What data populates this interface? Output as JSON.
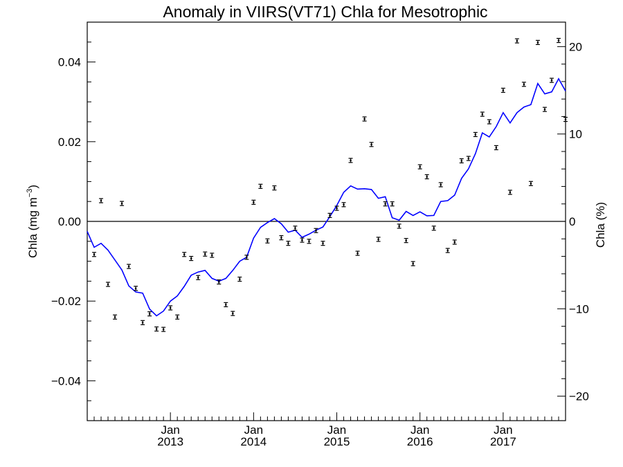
{
  "chart_data": {
    "type": "scatter",
    "title": "Anomaly in VIIRS(VT71) Chla for Mesotrophic",
    "ylabel_left_main": "Chla (mg m",
    "ylabel_left_sup": "−3",
    "ylabel_left_tail": ")",
    "ylabel_right": "Chla (%)",
    "x_tick_labels": [
      {
        "month": "Jan",
        "year": "2013"
      },
      {
        "month": "Jan",
        "year": "2014"
      },
      {
        "month": "Jan",
        "year": "2015"
      },
      {
        "month": "Jan",
        "year": "2016"
      },
      {
        "month": "Jan",
        "year": "2017"
      }
    ],
    "xlim": [
      "2012-01",
      "2017-10"
    ],
    "ylim_left": [
      -0.05,
      0.05
    ],
    "ylim_right": [
      -22.8,
      22.8
    ],
    "y_ticks_left": [
      {
        "value": 0.04,
        "label": "0.04"
      },
      {
        "value": 0.02,
        "label": "0.02"
      },
      {
        "value": 0.0,
        "label": "0.00"
      },
      {
        "value": -0.02,
        "label": "−0.02"
      },
      {
        "value": -0.04,
        "label": "−0.04"
      }
    ],
    "y_ticks_right": [
      {
        "value": 20,
        "label": "20"
      },
      {
        "value": 10,
        "label": "10"
      },
      {
        "value": 0,
        "label": "0"
      },
      {
        "value": -10,
        "label": "−10"
      },
      {
        "value": -20,
        "label": "−20"
      }
    ],
    "zero_line": true,
    "line_color": "#0000ff",
    "point_color": "#000000",
    "series": [
      {
        "kind": "monthly-anomaly-points-with-error-bars",
        "x": [
          "2012-02",
          "2012-03",
          "2012-04",
          "2012-05",
          "2012-06",
          "2012-07",
          "2012-08",
          "2012-09",
          "2012-10",
          "2012-11",
          "2012-12",
          "2013-01",
          "2013-02",
          "2013-03",
          "2013-04",
          "2013-05",
          "2013-06",
          "2013-07",
          "2013-08",
          "2013-09",
          "2013-10",
          "2013-11",
          "2013-12",
          "2014-01",
          "2014-02",
          "2014-03",
          "2014-04",
          "2014-05",
          "2014-06",
          "2014-07",
          "2014-08",
          "2014-09",
          "2014-10",
          "2014-11",
          "2014-12",
          "2015-01",
          "2015-02",
          "2015-03",
          "2015-04",
          "2015-05",
          "2015-06",
          "2015-07",
          "2015-08",
          "2015-09",
          "2015-10",
          "2015-11",
          "2015-12",
          "2016-01",
          "2016-02",
          "2016-03",
          "2016-04",
          "2016-05",
          "2016-06",
          "2016-07",
          "2016-08",
          "2016-09",
          "2016-10",
          "2016-11",
          "2016-12",
          "2017-01",
          "2017-02",
          "2017-03",
          "2017-04",
          "2017-05",
          "2017-06",
          "2017-07",
          "2017-08",
          "2017-09",
          "2017-10"
        ],
        "values": [
          -0.0083,
          0.0052,
          -0.0158,
          -0.024,
          0.0045,
          -0.0113,
          -0.0168,
          -0.0254,
          -0.0232,
          -0.027,
          -0.0271,
          -0.0217,
          -0.024,
          -0.0083,
          -0.0093,
          -0.0141,
          -0.0082,
          -0.0085,
          -0.0152,
          -0.0209,
          -0.0231,
          -0.0145,
          -0.009,
          0.0048,
          0.0088,
          -0.0049,
          0.0084,
          -0.0041,
          -0.0055,
          -0.0017,
          -0.0047,
          -0.005,
          -0.0023,
          -0.0055,
          0.0015,
          0.0033,
          0.0042,
          0.0153,
          -0.008,
          0.0257,
          0.0193,
          -0.0045,
          0.0044,
          0.0044,
          -0.0012,
          -0.0048,
          -0.0106,
          0.0137,
          0.0112,
          -0.0017,
          0.0092,
          -0.0073,
          -0.0052,
          0.0152,
          0.0158,
          0.0218,
          0.0269,
          0.025,
          0.0185,
          0.0329,
          0.0073,
          0.0453,
          0.0344,
          0.0095,
          0.0449,
          0.0281,
          0.0354,
          0.0454,
          0.0256
        ]
      },
      {
        "kind": "running-mean-line",
        "x": [
          "2012-01",
          "2012-02",
          "2012-03",
          "2012-04",
          "2012-05",
          "2012-06",
          "2012-07",
          "2012-08",
          "2012-09",
          "2012-10",
          "2012-11",
          "2012-12",
          "2013-01",
          "2013-02",
          "2013-03",
          "2013-04",
          "2013-05",
          "2013-06",
          "2013-07",
          "2013-08",
          "2013-09",
          "2013-10",
          "2013-11",
          "2013-12",
          "2014-01",
          "2014-02",
          "2014-03",
          "2014-04",
          "2014-05",
          "2014-06",
          "2014-07",
          "2014-08",
          "2014-09",
          "2014-10",
          "2014-11",
          "2014-12",
          "2015-01",
          "2015-02",
          "2015-03",
          "2015-04",
          "2015-05",
          "2015-06",
          "2015-07",
          "2015-08",
          "2015-09",
          "2015-10",
          "2015-11",
          "2015-12",
          "2016-01",
          "2016-02",
          "2016-03",
          "2016-04",
          "2016-05",
          "2016-06",
          "2016-07",
          "2016-08",
          "2016-09",
          "2016-10",
          "2016-11",
          "2016-12",
          "2017-01",
          "2017-02",
          "2017-03",
          "2017-04",
          "2017-05",
          "2017-06",
          "2017-07",
          "2017-08",
          "2017-09",
          "2017-10"
        ],
        "values": [
          -0.0025,
          -0.0065,
          -0.0055,
          -0.0072,
          -0.0097,
          -0.0122,
          -0.0162,
          -0.0177,
          -0.018,
          -0.022,
          -0.0237,
          -0.0225,
          -0.02,
          -0.0187,
          -0.0163,
          -0.0135,
          -0.0127,
          -0.0123,
          -0.0143,
          -0.015,
          -0.0143,
          -0.0123,
          -0.01,
          -0.009,
          -0.0042,
          -0.0015,
          -0.0003,
          0.0007,
          -0.0006,
          -0.0027,
          -0.0022,
          -0.004,
          -0.0032,
          -0.0022,
          -0.0014,
          0.0012,
          0.004,
          0.0073,
          0.0089,
          0.0081,
          0.0082,
          0.008,
          0.0058,
          0.0062,
          0.0009,
          0.0003,
          0.0025,
          0.0015,
          0.0024,
          0.0014,
          0.0015,
          0.005,
          0.0052,
          0.0066,
          0.0108,
          0.0132,
          0.017,
          0.0222,
          0.0212,
          0.0238,
          0.0273,
          0.0247,
          0.0273,
          0.0287,
          0.0293,
          0.0346,
          0.032,
          0.0325,
          0.0358,
          0.0327
        ]
      }
    ]
  }
}
